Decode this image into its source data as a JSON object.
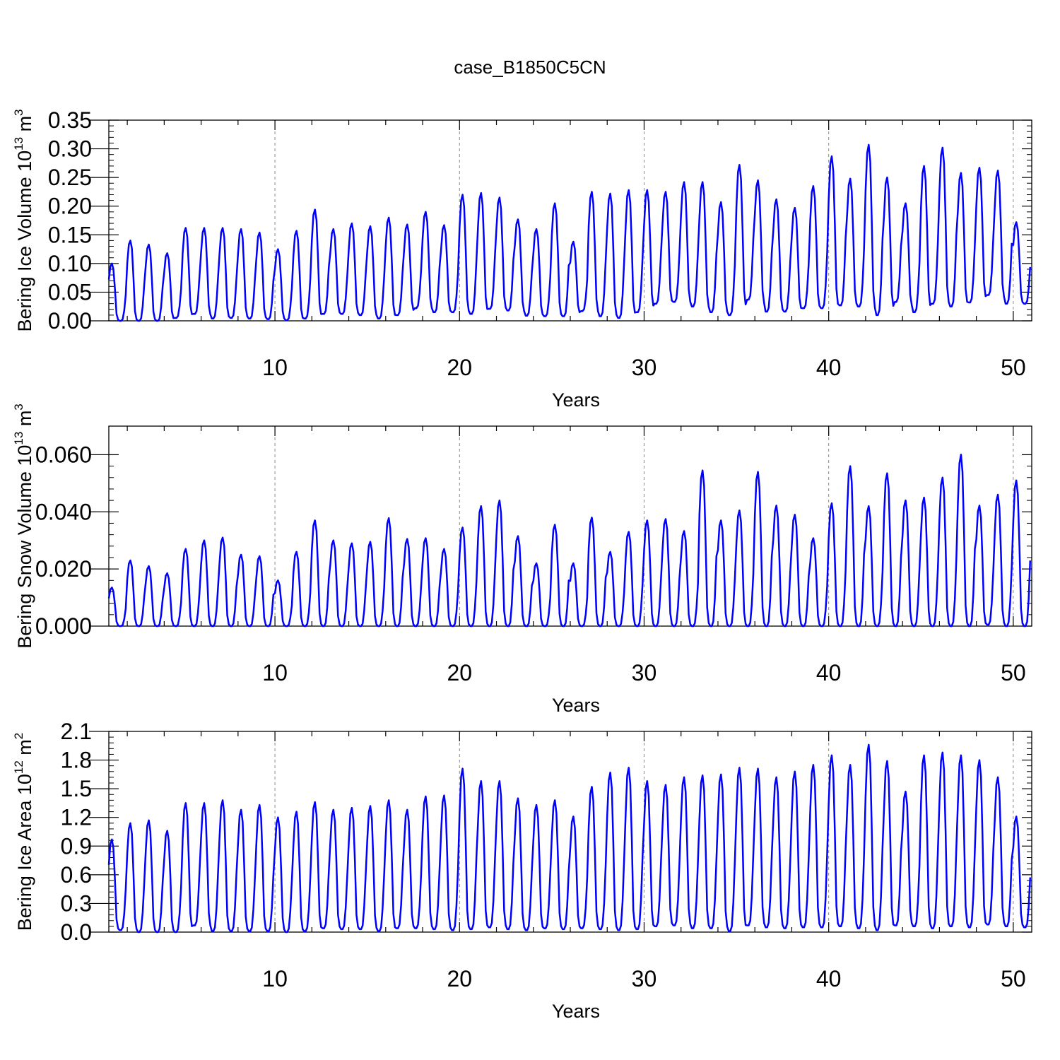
{
  "title": "case_B1850C5CN",
  "line_color": "#0000ff",
  "chart_data": [
    {
      "type": "line",
      "title": "case_B1850C5CN",
      "xlabel": "Years",
      "ylabel": "Bering Ice Volume 10",
      "ylabel_exp": "13",
      "ylabel_unit": " m",
      "ylabel_unit_exp": "3",
      "xlim": [
        1.0,
        51.0
      ],
      "ylim": [
        0.0,
        0.35
      ],
      "xticks": [
        10,
        20,
        30,
        40,
        50
      ],
      "yticks": [
        "0.00",
        "0.05",
        "0.10",
        "0.15",
        "0.20",
        "0.25",
        "0.30",
        "0.35"
      ],
      "vgrid": [
        10,
        20,
        30,
        40,
        50
      ],
      "series": [
        {
          "peaks": [
            0.1,
            0.14,
            0.133,
            0.118,
            0.162,
            0.162,
            0.162,
            0.16,
            0.154,
            0.125,
            0.157,
            0.194,
            0.16,
            0.17,
            0.165,
            0.18,
            0.168,
            0.19,
            0.167,
            0.22,
            0.223,
            0.215,
            0.177,
            0.16,
            0.205,
            0.138,
            0.225,
            0.222,
            0.228,
            0.228,
            0.225,
            0.242,
            0.242,
            0.207,
            0.272,
            0.245,
            0.212,
            0.197,
            0.235,
            0.287,
            0.248,
            0.307,
            0.25,
            0.205,
            0.27,
            0.302,
            0.258,
            0.267,
            0.262,
            0.172
          ],
          "troughs": [
            0.0,
            0.0,
            0.0,
            0.005,
            0.012,
            0.004,
            0.005,
            0.004,
            0.003,
            0.001,
            0.004,
            0.012,
            0.012,
            0.01,
            0.004,
            0.01,
            0.022,
            0.015,
            0.015,
            0.012,
            0.021,
            0.018,
            0.009,
            0.008,
            0.008,
            0.017,
            0.008,
            0.005,
            0.015,
            0.03,
            0.033,
            0.025,
            0.015,
            0.01,
            0.037,
            0.016,
            0.016,
            0.022,
            0.022,
            0.027,
            0.025,
            0.01,
            0.033,
            0.015,
            0.03,
            0.025,
            0.032,
            0.045,
            0.03,
            0.03
          ]
        }
      ]
    },
    {
      "type": "line",
      "xlabel": "Years",
      "ylabel": "Bering Snow Volume 10",
      "ylabel_exp": "13",
      "ylabel_unit": " m",
      "ylabel_unit_exp": "3",
      "xlim": [
        1.0,
        51.0
      ],
      "ylim": [
        0.0,
        0.07
      ],
      "xticks": [
        10,
        20,
        30,
        40,
        50
      ],
      "yticks": [
        "0.000",
        "0.020",
        "0.040",
        "0.060"
      ],
      "vgrid": [
        10,
        20,
        30,
        40,
        50
      ],
      "series": [
        {
          "peaks": [
            0.0135,
            0.023,
            0.021,
            0.0185,
            0.027,
            0.03,
            0.031,
            0.025,
            0.0245,
            0.016,
            0.026,
            0.037,
            0.03,
            0.029,
            0.0295,
            0.0378,
            0.0305,
            0.0308,
            0.027,
            0.0345,
            0.042,
            0.044,
            0.0315,
            0.022,
            0.0355,
            0.022,
            0.038,
            0.026,
            0.033,
            0.037,
            0.0375,
            0.0333,
            0.0545,
            0.037,
            0.0405,
            0.054,
            0.0422,
            0.039,
            0.0308,
            0.043,
            0.056,
            0.042,
            0.0535,
            0.044,
            0.045,
            0.052,
            0.06,
            0.0422,
            0.046,
            0.051
          ],
          "troughs": [
            0.0,
            0.0,
            0.0,
            0.0,
            0.0,
            0.0,
            0.0,
            0.0,
            0.0,
            0.0,
            0.0,
            0.0,
            0.0,
            0.0,
            0.0,
            0.0,
            0.0,
            0.0,
            0.0,
            0.0,
            0.0,
            0.0,
            0.0,
            0.0,
            0.0,
            0.0,
            0.0,
            0.0,
            0.0,
            0.0,
            0.0,
            0.0,
            0.0,
            0.0,
            0.0,
            0.0,
            0.0,
            0.0,
            0.0,
            0.0,
            0.0,
            0.0,
            0.0,
            0.0,
            0.0,
            0.0,
            0.0,
            0.0005,
            0.0,
            0.0
          ]
        }
      ]
    },
    {
      "type": "line",
      "xlabel": "Years",
      "ylabel": "Bering Ice Area 10",
      "ylabel_exp": "12",
      "ylabel_unit": " m",
      "ylabel_unit_exp": "2",
      "xlim": [
        1.0,
        51.0
      ],
      "ylim": [
        0.0,
        2.1
      ],
      "xticks": [
        10,
        20,
        30,
        40,
        50
      ],
      "yticks": [
        "0.0",
        "0.3",
        "0.6",
        "0.9",
        "1.2",
        "1.5",
        "1.8",
        "2.1"
      ],
      "vgrid": [
        10,
        20,
        30,
        40,
        50
      ],
      "series": [
        {
          "peaks": [
            0.97,
            1.14,
            1.17,
            1.06,
            1.35,
            1.35,
            1.38,
            1.28,
            1.33,
            1.2,
            1.26,
            1.36,
            1.28,
            1.3,
            1.32,
            1.38,
            1.28,
            1.42,
            1.43,
            1.71,
            1.58,
            1.58,
            1.4,
            1.33,
            1.38,
            1.21,
            1.52,
            1.67,
            1.72,
            1.58,
            1.54,
            1.62,
            1.64,
            1.65,
            1.72,
            1.71,
            1.62,
            1.68,
            1.75,
            1.85,
            1.75,
            1.96,
            1.79,
            1.47,
            1.85,
            1.88,
            1.85,
            1.8,
            1.62,
            1.21
          ],
          "troughs": [
            0.02,
            0.0,
            0.0,
            0.0,
            0.07,
            0.01,
            0.01,
            0.01,
            0.01,
            0.0,
            0.01,
            0.04,
            0.03,
            0.03,
            0.01,
            0.04,
            0.04,
            0.03,
            0.02,
            0.03,
            0.05,
            0.03,
            0.02,
            0.04,
            0.03,
            0.04,
            0.03,
            0.02,
            0.03,
            0.06,
            0.07,
            0.04,
            0.04,
            0.01,
            0.07,
            0.05,
            0.04,
            0.05,
            0.05,
            0.06,
            0.04,
            0.02,
            0.07,
            0.06,
            0.04,
            0.06,
            0.05,
            0.08,
            0.06,
            0.05
          ]
        }
      ]
    }
  ]
}
